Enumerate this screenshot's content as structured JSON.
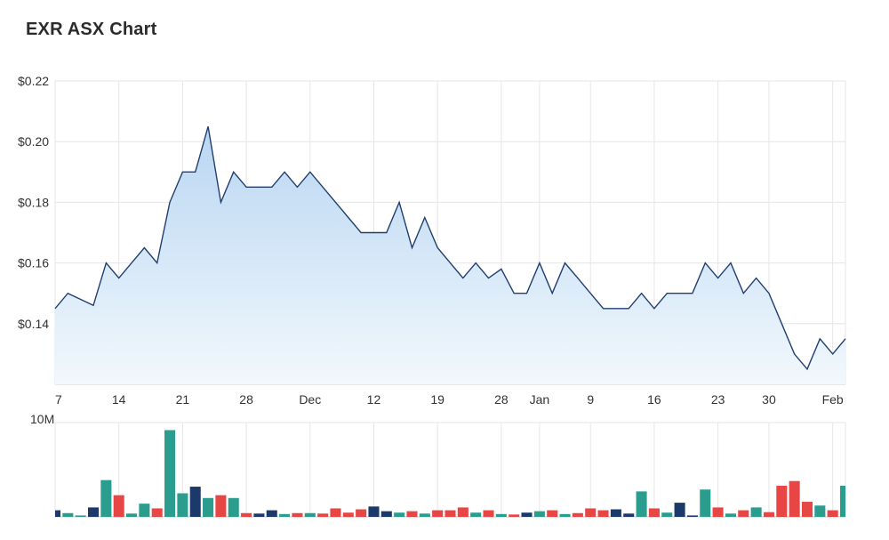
{
  "chart_data": {
    "type": "area",
    "title": "EXR ASX Chart",
    "price": {
      "y_ticks": [
        {
          "value": 0.14,
          "label": "$0.14"
        },
        {
          "value": 0.16,
          "label": "$0.16"
        },
        {
          "value": 0.18,
          "label": "$0.18"
        },
        {
          "value": 0.2,
          "label": "$0.20"
        },
        {
          "value": 0.22,
          "label": "$0.22"
        }
      ],
      "ylim": [
        0.12,
        0.22
      ],
      "values": [
        0.145,
        0.15,
        0.148,
        0.146,
        0.16,
        0.155,
        0.16,
        0.165,
        0.16,
        0.18,
        0.19,
        0.19,
        0.205,
        0.18,
        0.19,
        0.185,
        0.185,
        0.185,
        0.19,
        0.185,
        0.19,
        0.185,
        0.18,
        0.175,
        0.17,
        0.17,
        0.17,
        0.18,
        0.165,
        0.175,
        0.165,
        0.16,
        0.155,
        0.16,
        0.155,
        0.158,
        0.15,
        0.15,
        0.16,
        0.15,
        0.16,
        0.155,
        0.15,
        0.145,
        0.145,
        0.145,
        0.15,
        0.145,
        0.15,
        0.15,
        0.15,
        0.16,
        0.155,
        0.16,
        0.15,
        0.155,
        0.15,
        0.14,
        0.13,
        0.125,
        0.135,
        0.13,
        0.135
      ]
    },
    "x_ticks": [
      {
        "index": 0,
        "label": "7"
      },
      {
        "index": 5,
        "label": "14"
      },
      {
        "index": 10,
        "label": "21"
      },
      {
        "index": 15,
        "label": "28"
      },
      {
        "index": 20,
        "label": "Dec"
      },
      {
        "index": 25,
        "label": "12"
      },
      {
        "index": 30,
        "label": "19"
      },
      {
        "index": 35,
        "label": "28"
      },
      {
        "index": 38,
        "label": "Jan"
      },
      {
        "index": 42,
        "label": "9"
      },
      {
        "index": 47,
        "label": "16"
      },
      {
        "index": 52,
        "label": "23"
      },
      {
        "index": 56,
        "label": "30"
      },
      {
        "index": 61,
        "label": "Feb"
      }
    ],
    "volume": {
      "y_max_label": "10M",
      "ylim": [
        0,
        10000000
      ],
      "values": [
        700000,
        400000,
        150000,
        1000000,
        3900000,
        2300000,
        350000,
        1400000,
        900000,
        9200000,
        2500000,
        3200000,
        2000000,
        2300000,
        2000000,
        400000,
        350000,
        700000,
        300000,
        400000,
        400000,
        350000,
        900000,
        450000,
        800000,
        1100000,
        600000,
        450000,
        600000,
        350000,
        700000,
        700000,
        1000000,
        450000,
        700000,
        300000,
        250000,
        450000,
        600000,
        700000,
        300000,
        400000,
        900000,
        700000,
        800000,
        350000,
        2700000,
        900000,
        450000,
        1500000,
        150000,
        2900000,
        1000000,
        350000,
        700000,
        1000000,
        500000,
        3300000,
        3800000,
        1600000,
        1200000,
        700000,
        3300000
      ],
      "colors": [
        "#1b3a6b",
        "#2a9d8f",
        "#2a9d8f",
        "#1b3a6b",
        "#2a9d8f",
        "#e84545",
        "#2a9d8f",
        "#2a9d8f",
        "#e84545",
        "#2a9d8f",
        "#2a9d8f",
        "#1b3a6b",
        "#2a9d8f",
        "#e84545",
        "#2a9d8f",
        "#e84545",
        "#1b3a6b",
        "#1b3a6b",
        "#2a9d8f",
        "#e84545",
        "#2a9d8f",
        "#e84545",
        "#e84545",
        "#e84545",
        "#e84545",
        "#1b3a6b",
        "#1b3a6b",
        "#2a9d8f",
        "#e84545",
        "#2a9d8f",
        "#e84545",
        "#e84545",
        "#e84545",
        "#2a9d8f",
        "#e84545",
        "#2a9d8f",
        "#e84545",
        "#1b3a6b",
        "#2a9d8f",
        "#e84545",
        "#2a9d8f",
        "#e84545",
        "#e84545",
        "#e84545",
        "#1b3a6b",
        "#1b3a6b",
        "#2a9d8f",
        "#e84545",
        "#2a9d8f",
        "#1b3a6b",
        "#1b3a6b",
        "#2a9d8f",
        "#e84545",
        "#2a9d8f",
        "#e84545",
        "#2a9d8f",
        "#e84545",
        "#e84545",
        "#e84545",
        "#e84545",
        "#2a9d8f",
        "#e84545",
        "#2a9d8f"
      ]
    },
    "colors": {
      "line": "#1f3f6e",
      "area_top": "#b9d6f2",
      "area_bottom": "#f2f8fd",
      "grid": "#e6e6e6"
    }
  }
}
